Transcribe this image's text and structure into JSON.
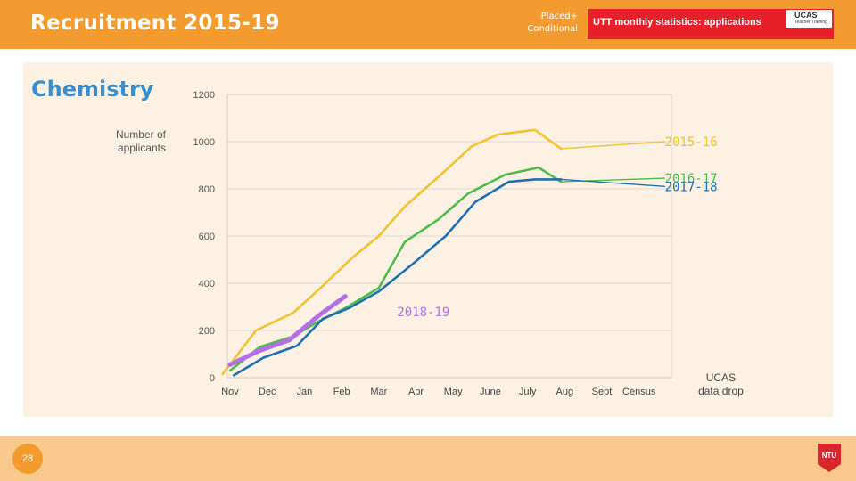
{
  "header": {
    "title": "Recruitment 2015-19",
    "placed_line1": "Placed+",
    "placed_line2": "Conditional",
    "banner_text": "UTT monthly statistics: applications",
    "ucas_logo_text": "UCAS",
    "ucas_logo_sub": "Teacher Training"
  },
  "subject": "Chemistry",
  "footer": {
    "page_number": "28",
    "ntu_logo_text": "NTU"
  },
  "colors": {
    "header": "#f39b2e",
    "banner": "#e8202a",
    "panel": "#fdf1e3",
    "footer": "#f9c98c",
    "subject": "#3a8fd1"
  },
  "chart_data": {
    "type": "line",
    "title": "",
    "xlabel": "",
    "ylabel_line1": "Number of",
    "ylabel_line2": "applicants",
    "ylim": [
      0,
      1200
    ],
    "yticks": [
      0,
      200,
      400,
      600,
      800,
      1000,
      1200
    ],
    "categories": [
      "Nov",
      "Dec",
      "Jan",
      "Feb",
      "Mar",
      "Apr",
      "May",
      "June",
      "July",
      "Aug",
      "Sept",
      "Census"
    ],
    "extra_category_line1": "UCAS",
    "extra_category_line2": "data drop",
    "series": [
      {
        "name": "2015-16",
        "color": "#f2c230",
        "x": [
          -0.2,
          0.7,
          1.7,
          2.5,
          3.3,
          4.0,
          4.7,
          5.6,
          6.5,
          7.2,
          8.2,
          8.9
        ],
        "values": [
          15,
          200,
          275,
          390,
          510,
          600,
          725,
          850,
          980,
          1030,
          1050,
          970
        ],
        "leader_to": [
          11.7,
          1000
        ],
        "label_at": [
          12.4,
          1000
        ]
      },
      {
        "name": "2016-17",
        "color": "#4fbb4a",
        "x": [
          0.0,
          0.8,
          1.7,
          2.4,
          3.1,
          4.0,
          4.7,
          5.6,
          6.4,
          7.4,
          8.3,
          8.9
        ],
        "values": [
          30,
          130,
          175,
          240,
          295,
          380,
          575,
          670,
          780,
          860,
          890,
          830
        ],
        "leader_to": [
          11.7,
          845
        ],
        "label_at": [
          12.4,
          845
        ]
      },
      {
        "name": "2017-18",
        "color": "#1f6fb5",
        "x": [
          0.1,
          0.9,
          1.8,
          2.5,
          3.2,
          4.0,
          4.9,
          5.8,
          6.6,
          7.5,
          8.2,
          8.9
        ],
        "values": [
          10,
          85,
          135,
          250,
          295,
          365,
          480,
          600,
          745,
          830,
          840,
          840
        ],
        "leader_to": [
          11.7,
          810
        ],
        "label_at": [
          12.4,
          810
        ]
      },
      {
        "name": "2018-19",
        "color": "#b46ee6",
        "x": [
          0.0,
          0.8,
          1.6,
          2.4,
          3.1
        ],
        "values": [
          55,
          115,
          160,
          265,
          345
        ],
        "label_at": [
          5.2,
          280
        ]
      }
    ]
  }
}
